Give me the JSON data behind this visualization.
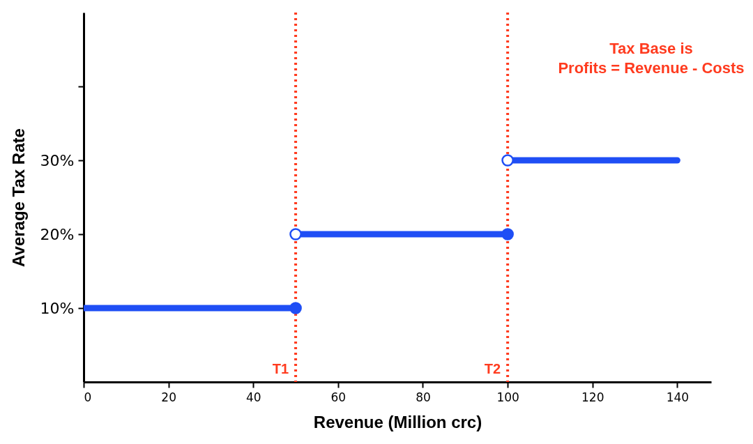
{
  "chart_data": {
    "type": "step",
    "xlabel": "Revenue (Million crc)",
    "ylabel": "Average Tax Rate",
    "xlim": [
      0,
      148
    ],
    "xticks": [
      0,
      20,
      40,
      60,
      80,
      100,
      120,
      140
    ],
    "ylim": [
      0,
      50
    ],
    "yticks": [
      {
        "value": 10,
        "label": "10%"
      },
      {
        "value": 20,
        "label": "20%"
      },
      {
        "value": 30,
        "label": "30%"
      },
      {
        "value": 40,
        "label": null
      }
    ],
    "series": [
      {
        "color": "#1f4ef5",
        "x": [
          0,
          50
        ],
        "values": [
          10,
          10
        ]
      },
      {
        "color": "#1f4ef5",
        "x": [
          50,
          100
        ],
        "values": [
          20,
          20
        ]
      },
      {
        "color": "#1f4ef5",
        "x": [
          100,
          140
        ],
        "values": [
          30,
          30
        ]
      },
      {
        "type": "scatter",
        "marker": "circle",
        "color": "#1f4ef5",
        "x": [
          50,
          100
        ],
        "values": [
          10,
          20
        ]
      },
      {
        "type": "scatter",
        "marker": "circle",
        "color": "#ffffff",
        "x": [
          50,
          100
        ],
        "values": [
          20,
          30
        ]
      }
    ],
    "ref_lines": [
      {
        "axis": "x",
        "value": 50,
        "label": "T1",
        "color": "#ff3b1f",
        "line_style": "dotted"
      },
      {
        "axis": "x",
        "value": 100,
        "label": "T2",
        "color": "#ff3b1f",
        "line_style": "dotted"
      }
    ],
    "annotations": [
      "Tax Base is\nProfits = Revenue - Costs"
    ]
  }
}
